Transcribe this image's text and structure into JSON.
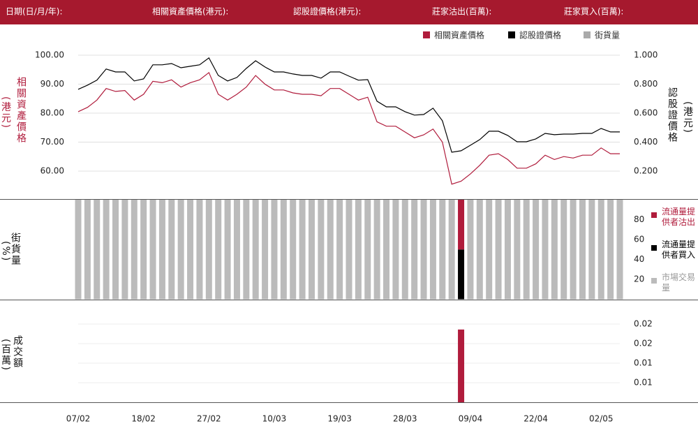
{
  "header": {
    "fields": [
      "日期(日/月/年):",
      "相關資產價格(港元):",
      "認股證價格(港元):",
      "莊家沽出(百萬):",
      "莊家買入(百萬):"
    ]
  },
  "chart_data": [
    {
      "type": "line",
      "y_label": "相關資產價格",
      "y_unit": "(港元)",
      "y2_label": "認股證價格",
      "y2_unit": "(港元)",
      "ylim": [
        50.36,
        102.17
      ],
      "yticks": [
        {
          "value": 60,
          "label": "60.00"
        },
        {
          "value": 70,
          "label": "70.00"
        },
        {
          "value": 80,
          "label": "80.00"
        },
        {
          "value": 90,
          "label": "90.00"
        },
        {
          "value": 100,
          "label": "100.00"
        }
      ],
      "y2lim": [
        0.007,
        1.043
      ],
      "y2ticks": [
        {
          "value": 0.2,
          "label": "0.200"
        },
        {
          "value": 0.4,
          "label": "0.400"
        },
        {
          "value": 0.6,
          "label": "0.600"
        },
        {
          "value": 0.8,
          "label": "0.800"
        },
        {
          "value": 1,
          "label": "1.000"
        }
      ],
      "grid": true,
      "legend_position": "top-right",
      "series": [
        {
          "name": "相關資產價格",
          "color": "#b01c3c",
          "values": [
            80.5,
            82,
            84.5,
            88.5,
            87.5,
            87.8,
            84.5,
            86.5,
            91,
            90.5,
            91.5,
            89,
            90.5,
            91.5,
            94,
            86.5,
            84.5,
            86.5,
            89,
            93,
            90,
            88,
            88,
            87,
            86.5,
            86.5,
            86,
            88.5,
            88.5,
            86.5,
            84.5,
            85.5,
            77,
            75.5,
            75.5,
            73.5,
            71.5,
            72.5,
            74.5,
            70,
            55.5,
            56.5,
            59,
            62,
            65.5,
            66,
            64,
            61,
            61,
            62.5,
            65.5,
            64,
            65,
            64.5,
            65.5,
            65.5,
            68,
            66,
            66
          ]
        },
        {
          "name": "認股證價格",
          "color": "#000000",
          "axis": "y2",
          "values": [
            0.764,
            0.793,
            0.827,
            0.904,
            0.884,
            0.884,
            0.822,
            0.836,
            0.933,
            0.933,
            0.942,
            0.913,
            0.923,
            0.933,
            0.981,
            0.86,
            0.822,
            0.846,
            0.908,
            0.961,
            0.918,
            0.884,
            0.884,
            0.87,
            0.86,
            0.86,
            0.841,
            0.884,
            0.884,
            0.855,
            0.827,
            0.831,
            0.682,
            0.643,
            0.643,
            0.61,
            0.586,
            0.59,
            0.634,
            0.547,
            0.33,
            0.34,
            0.378,
            0.417,
            0.475,
            0.475,
            0.446,
            0.402,
            0.402,
            0.422,
            0.46,
            0.451,
            0.455,
            0.455,
            0.46,
            0.46,
            0.494,
            0.47,
            0.47
          ]
        }
      ],
      "extra_legend": {
        "name": "街貨量",
        "color": "#aaaaaa"
      }
    },
    {
      "type": "stacked-bar",
      "y_label": "街貨量",
      "y_unit": "(%)",
      "ylim": [
        0,
        100
      ],
      "yticks": [
        20,
        40,
        60,
        80
      ],
      "legend_position": "right",
      "series": [
        {
          "name": "流通量提供者沽出",
          "color": "#b01c3c",
          "values": [
            null,
            null,
            null,
            null,
            null,
            null,
            null,
            null,
            null,
            null,
            null,
            null,
            null,
            null,
            null,
            null,
            null,
            null,
            null,
            null,
            null,
            null,
            null,
            null,
            null,
            null,
            null,
            null,
            null,
            null,
            null,
            null,
            null,
            null,
            null,
            null,
            null,
            null,
            null,
            null,
            null,
            50,
            null,
            null,
            null,
            null,
            null,
            null,
            null,
            null,
            null,
            null,
            null,
            null,
            null,
            null,
            null,
            null,
            null
          ]
        },
        {
          "name": "流通量提供者買入",
          "color": "#000000",
          "values": [
            null,
            null,
            null,
            null,
            null,
            null,
            null,
            null,
            null,
            null,
            null,
            null,
            null,
            null,
            null,
            null,
            null,
            null,
            null,
            null,
            null,
            null,
            null,
            null,
            null,
            null,
            null,
            null,
            null,
            null,
            null,
            null,
            null,
            null,
            null,
            null,
            null,
            null,
            null,
            null,
            null,
            50,
            null,
            null,
            null,
            null,
            null,
            null,
            null,
            null,
            null,
            null,
            null,
            null,
            null,
            null,
            null,
            null,
            null
          ]
        },
        {
          "name": "市場交易量",
          "color": "#bbbbbb",
          "values": [
            100,
            100,
            100,
            100,
            100,
            100,
            100,
            100,
            100,
            100,
            100,
            100,
            100,
            100,
            100,
            100,
            100,
            100,
            100,
            100,
            100,
            100,
            100,
            100,
            100,
            100,
            100,
            100,
            100,
            100,
            100,
            100,
            100,
            100,
            100,
            100,
            100,
            100,
            100,
            100,
            100,
            null,
            100,
            100,
            100,
            100,
            100,
            100,
            100,
            100,
            100,
            100,
            100,
            100,
            100,
            100,
            100,
            100,
            100
          ]
        }
      ]
    },
    {
      "type": "bar",
      "y_label": "成交額",
      "y_unit": "(百萬)",
      "color": "#b01c3c",
      "grid": true,
      "ylim": [
        0,
        0.02625
      ],
      "yticks": [
        {
          "value": 0.005,
          "label": "0.01"
        },
        {
          "value": 0.01,
          "label": "0.01"
        },
        {
          "value": 0.015,
          "label": "0.02"
        },
        {
          "value": 0.02,
          "label": "0.02"
        }
      ],
      "categories": [
        "07/02",
        null,
        null,
        null,
        null,
        null,
        null,
        "18/02",
        null,
        null,
        null,
        null,
        null,
        null,
        "27/02",
        null,
        null,
        null,
        null,
        null,
        null,
        "10/03",
        null,
        null,
        null,
        null,
        null,
        null,
        "19/03",
        null,
        null,
        null,
        null,
        null,
        null,
        "28/03",
        null,
        null,
        null,
        null,
        null,
        null,
        "09/04",
        null,
        null,
        null,
        null,
        null,
        null,
        "22/04",
        null,
        null,
        null,
        null,
        null,
        null,
        "02/05",
        null,
        null
      ],
      "values": [
        null,
        null,
        null,
        null,
        null,
        null,
        null,
        null,
        null,
        null,
        null,
        null,
        null,
        null,
        null,
        null,
        null,
        null,
        null,
        null,
        null,
        null,
        null,
        null,
        null,
        null,
        null,
        null,
        null,
        null,
        null,
        null,
        null,
        null,
        null,
        null,
        null,
        null,
        null,
        null,
        null,
        0.0186,
        null,
        null,
        null,
        null,
        null,
        null,
        null,
        null,
        null,
        null,
        null,
        null,
        null,
        null,
        null,
        null,
        null
      ]
    }
  ]
}
